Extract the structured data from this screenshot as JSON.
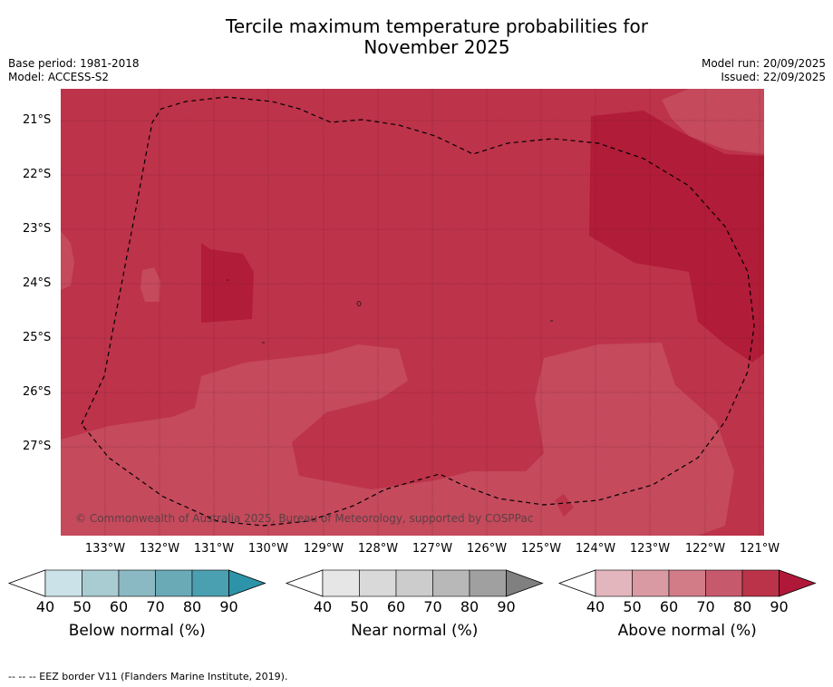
{
  "title_line1": "Tercile maximum temperature probabilities for",
  "title_line2": "November 2025",
  "meta_left": [
    "Base period: 1981-2018",
    "Model: ACCESS-S2"
  ],
  "meta_right": [
    "Model run: 20/09/2025",
    "Issued: 22/09/2025"
  ],
  "latitude_labels": [
    "21°S",
    "22°S",
    "23°S",
    "24°S",
    "25°S",
    "26°S",
    "27°S"
  ],
  "longitude_labels": [
    "133°W",
    "132°W",
    "131°W",
    "130°W",
    "129°W",
    "128°W",
    "127°W",
    "126°W",
    "125°W",
    "124°W",
    "123°W",
    "122°W",
    "121°W"
  ],
  "copyright": "© Commonwealth of Australia 2025, Bureau of Meteorology, supported by COSPPac",
  "colorbars": [
    {
      "label": "Below normal (%)",
      "ticks": [
        "40",
        "50",
        "60",
        "70",
        "80",
        "90"
      ],
      "colors": [
        "#ffffff",
        "#cbe2e8",
        "#a9cbd2",
        "#8ab8c3",
        "#6aa9b6",
        "#4a9fb0",
        "#2d93a8"
      ]
    },
    {
      "label": "Near normal (%)",
      "ticks": [
        "40",
        "50",
        "60",
        "70",
        "80",
        "90"
      ],
      "colors": [
        "#ffffff",
        "#e6e6e6",
        "#d9d9d9",
        "#cccccc",
        "#b8b8b8",
        "#a0a0a0",
        "#808080"
      ]
    },
    {
      "label": "Above normal (%)",
      "ticks": [
        "40",
        "50",
        "60",
        "70",
        "80",
        "90"
      ],
      "colors": [
        "#ffffff",
        "#e3b6bd",
        "#da9aa4",
        "#d27c88",
        "#c65a6c",
        "#bb3349",
        "#b0183a"
      ]
    }
  ],
  "footer": "--  --  -- EEZ border V11 (Flanders Marine Institute, 2019)."
}
